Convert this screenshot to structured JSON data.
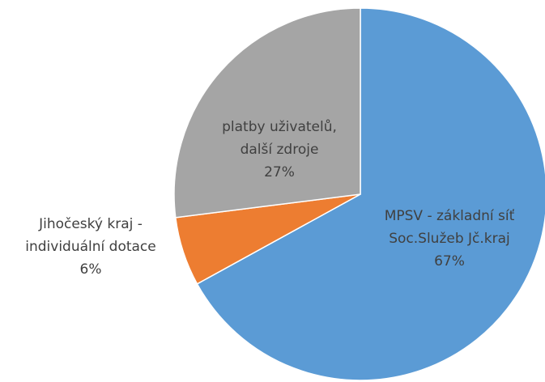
{
  "chart_data": {
    "type": "pie",
    "categories": [
      "MPSV - základní síť\nSoc.Služeb Jč.kraj",
      "Jihočeský kraj -\nindividuální dotace",
      "platby uživatelů,\ndalší zdroje"
    ],
    "values": [
      67,
      6,
      27
    ],
    "value_labels": [
      "67%",
      "6%",
      "27%"
    ],
    "colors": [
      "#5b9bd5",
      "#ed7d31",
      "#a5a5a5"
    ]
  }
}
